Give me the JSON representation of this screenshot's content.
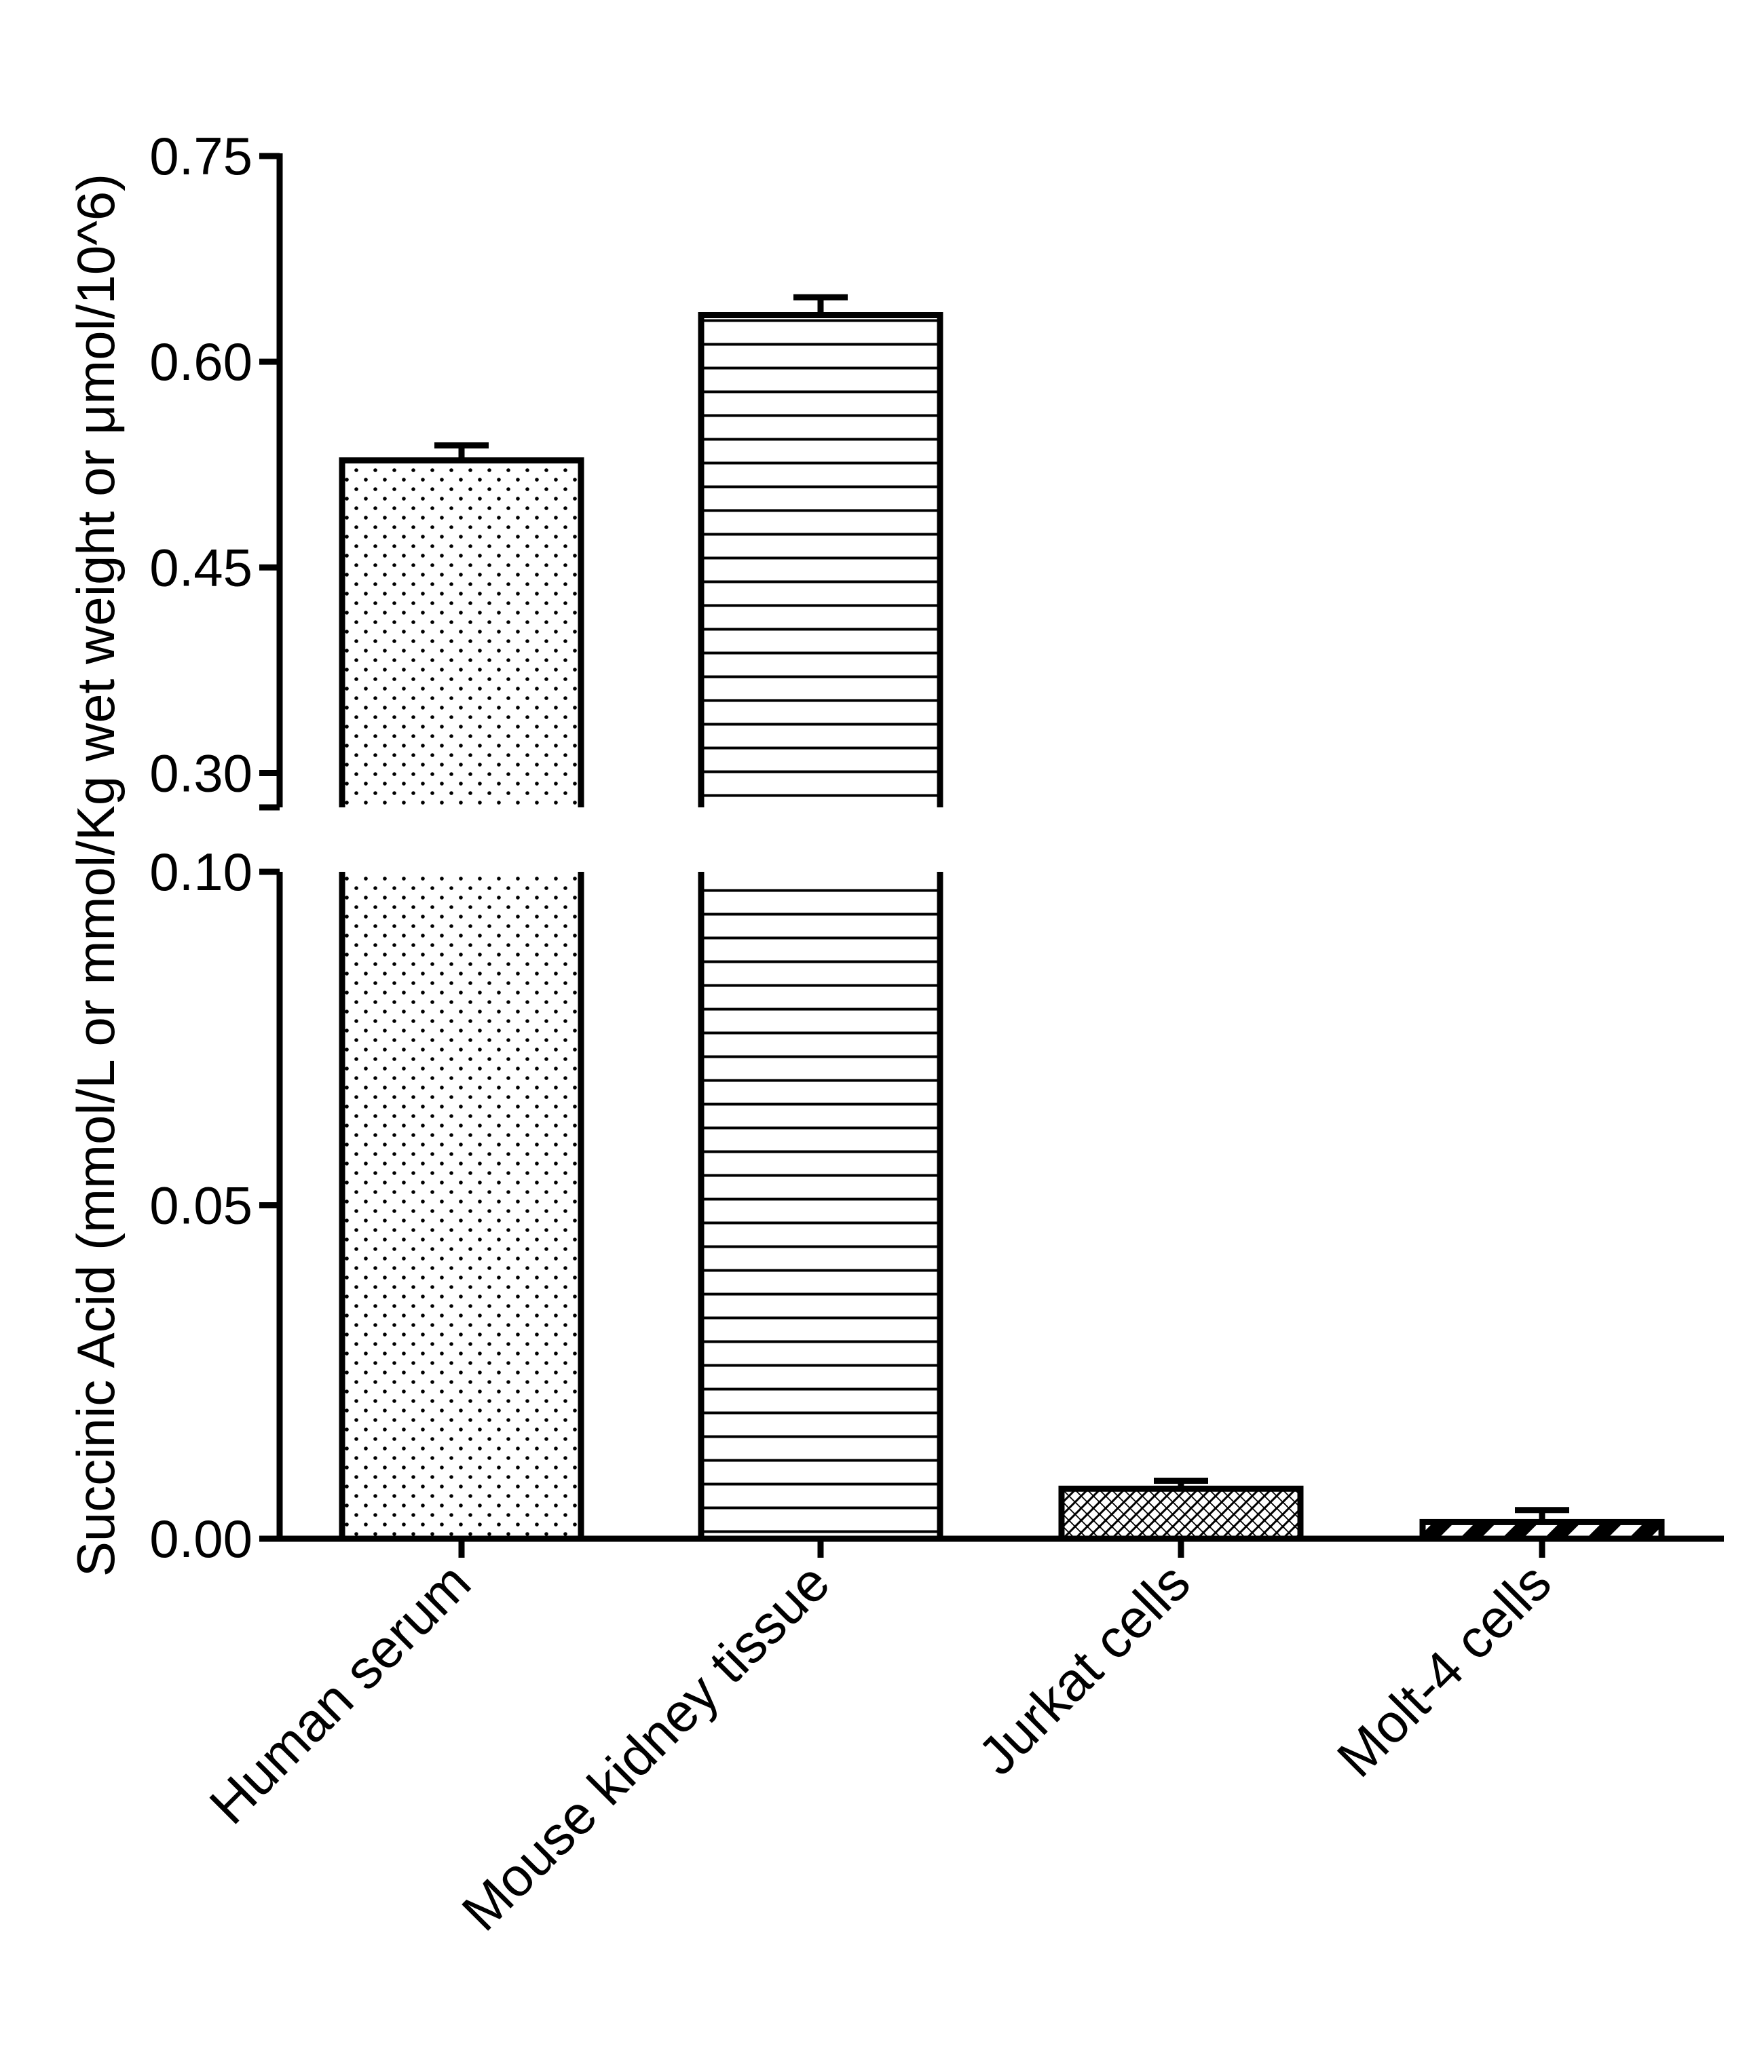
{
  "chart_data": {
    "type": "bar",
    "title": "",
    "xlabel": "",
    "ylabel": "Succinic Acid (mmol/L or mmol/Kg wet weight or μmol/10^6)",
    "categories": [
      "Human serum",
      "Mouse kidney tissue",
      "Jurkat cells",
      "Molt-4 cells"
    ],
    "values": [
      0.528,
      0.634,
      0.0075,
      0.0025
    ],
    "errors": [
      0.011,
      0.013,
      0.0012,
      0.0018
    ],
    "patterns": [
      "dots",
      "horizontal-lines",
      "diagonal-crosshatch",
      "diagonal-stripes"
    ],
    "y_axis_broken": true,
    "lower_segment": {
      "ylim": [
        0,
        0.1
      ],
      "ticks": [
        "0.00",
        "0.05",
        "0.10"
      ]
    },
    "upper_segment": {
      "ylim": [
        0.275,
        0.75
      ],
      "ticks": [
        "0.30",
        "0.45",
        "0.60",
        "0.75"
      ]
    },
    "grid": false,
    "legend": "none"
  }
}
